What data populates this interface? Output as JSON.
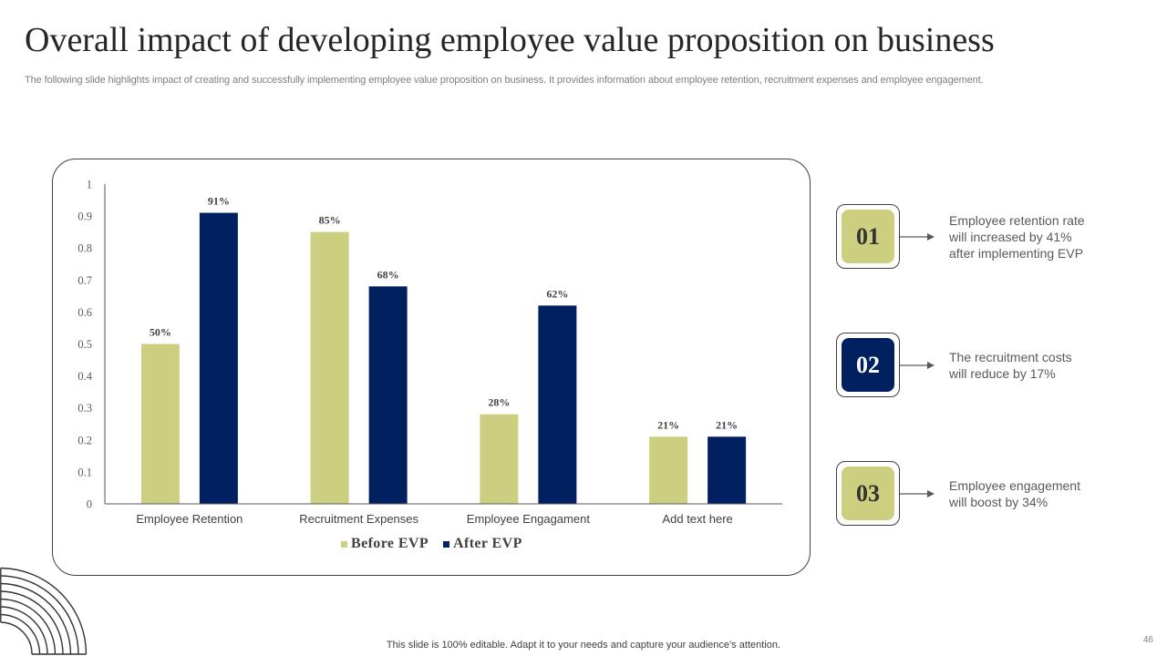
{
  "slide": {
    "title": "Overall impact of developing employee value proposition on business",
    "subtitle": "The following slide highlights impact of creating and successfully implementing employee value proposition on business. It provides information about employee retention, recruitment expenses and employee engagement.",
    "footer": "This slide is 100% editable. Adapt it to your needs and capture your audience’s attention.",
    "page_number": "46"
  },
  "colors": {
    "before": "#CBCF7F",
    "after": "#002060",
    "text_dark": "#404040",
    "axis": "#595959"
  },
  "chart_data": {
    "type": "bar",
    "title": "",
    "xlabel": "",
    "ylabel": "",
    "categories": [
      "Employee Retention",
      "Recruitment Expenses",
      "Employee Engagament",
      "Add text here"
    ],
    "series": [
      {
        "name": "Before EVP",
        "values": [
          0.5,
          0.85,
          0.28,
          0.21
        ],
        "labels": [
          "50%",
          "85%",
          "28%",
          "21%"
        ],
        "color": "#CBCF7F"
      },
      {
        "name": "After EVP",
        "values": [
          0.91,
          0.68,
          0.62,
          0.21
        ],
        "labels": [
          "91%",
          "68%",
          "62%",
          "21%"
        ],
        "color": "#002060"
      }
    ],
    "ylim": [
      0,
      1
    ],
    "yticks": [
      0,
      0.1,
      0.2,
      0.3,
      0.4,
      0.5,
      0.6,
      0.7,
      0.8,
      0.9,
      1
    ],
    "ytick_labels": [
      "0",
      "0.1",
      "0.2",
      "0.3",
      "0.4",
      "0.5",
      "0.6",
      "0.7",
      "0.8",
      "0.9",
      "1"
    ],
    "grid": false,
    "legend": "bottom"
  },
  "callouts": [
    {
      "number": "01",
      "lines": [
        "Employee retention rate",
        "will increased by 41%",
        "after implementing EVP"
      ],
      "fill": "#CBCF7F",
      "number_color": "#333333"
    },
    {
      "number": "02",
      "lines": [
        "The recruitment costs",
        "will reduce by 17%"
      ],
      "fill": "#002060",
      "number_color": "#FFFFFF"
    },
    {
      "number": "03",
      "lines": [
        "Employee engagement",
        "will boost by 34%"
      ],
      "fill": "#CBCF7F",
      "number_color": "#333333"
    }
  ]
}
